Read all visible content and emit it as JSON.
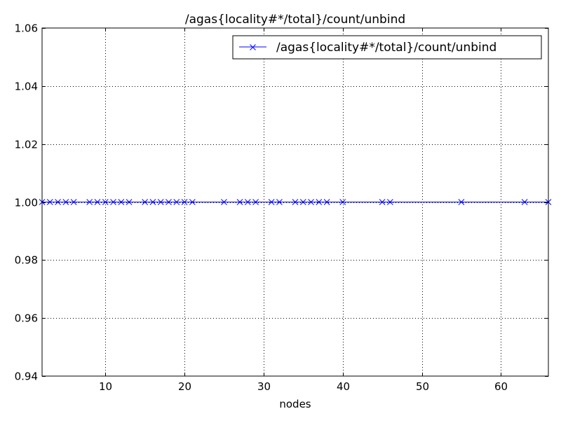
{
  "chart_data": {
    "type": "line",
    "title": "/agas{locality#*/total}/count/unbind",
    "xlabel": "nodes",
    "ylabel": "",
    "xlim": [
      2,
      66
    ],
    "ylim": [
      0.94,
      1.06
    ],
    "xticks": [
      10,
      20,
      30,
      40,
      50,
      60
    ],
    "xtick_labels": [
      "10",
      "20",
      "30",
      "40",
      "50",
      "60"
    ],
    "yticks": [
      0.94,
      0.96,
      0.98,
      1.0,
      1.02,
      1.04,
      1.06
    ],
    "ytick_labels": [
      "0.94",
      "0.96",
      "0.98",
      "1.00",
      "1.02",
      "1.04",
      "1.06"
    ],
    "grid": true,
    "legend_position": "top-right",
    "series": [
      {
        "name": "/agas{locality#*/total}/count/unbind",
        "color": "#0000ff",
        "marker": "x",
        "x": [
          2,
          3,
          4,
          5,
          6,
          8,
          9,
          10,
          11,
          12,
          13,
          15,
          16,
          17,
          18,
          19,
          20,
          21,
          25,
          27,
          28,
          29,
          31,
          32,
          34,
          35,
          36,
          37,
          38,
          40,
          45,
          46,
          55,
          63,
          66
        ],
        "y": [
          1,
          1,
          1,
          1,
          1,
          1,
          1,
          1,
          1,
          1,
          1,
          1,
          1,
          1,
          1,
          1,
          1,
          1,
          1,
          1,
          1,
          1,
          1,
          1,
          1,
          1,
          1,
          1,
          1,
          1,
          1,
          1,
          1,
          1,
          1
        ]
      }
    ]
  }
}
